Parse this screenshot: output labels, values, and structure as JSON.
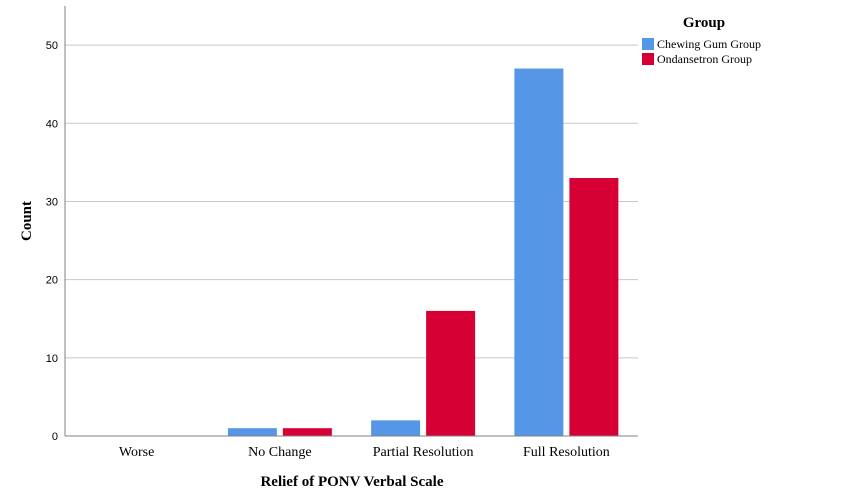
{
  "chart_data": {
    "type": "bar",
    "title": "",
    "xlabel": "Relief of PONV Verbal Scale",
    "ylabel": "Count",
    "categories": [
      "Worse",
      "No Change",
      "Partial Resolution",
      "Full Resolution"
    ],
    "series": [
      {
        "name": "Chewing Gum Group",
        "values": [
          0,
          1,
          2,
          47
        ],
        "color": "#5597e6"
      },
      {
        "name": "Ondansetron Group",
        "values": [
          0,
          1,
          16,
          33
        ],
        "color": "#d70035"
      }
    ],
    "ylim": [
      0,
      55
    ],
    "yticks": [
      0,
      10,
      20,
      30,
      40,
      50
    ],
    "grid": true,
    "legend": {
      "title": "Group",
      "position": "top-right"
    }
  }
}
